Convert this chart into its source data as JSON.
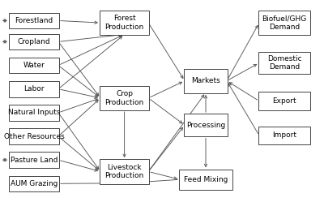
{
  "background_color": "#ffffff",
  "boxes": {
    "Forestland": [
      0.03,
      0.87,
      0.15,
      0.068
    ],
    "Cropland": [
      0.03,
      0.772,
      0.15,
      0.068
    ],
    "Water": [
      0.03,
      0.662,
      0.15,
      0.068
    ],
    "Labor": [
      0.03,
      0.552,
      0.15,
      0.068
    ],
    "Natural Inputs": [
      0.03,
      0.442,
      0.15,
      0.068
    ],
    "Other Resources": [
      0.03,
      0.332,
      0.15,
      0.068
    ],
    "Pasture Land": [
      0.03,
      0.222,
      0.15,
      0.068
    ],
    "AUM Grazing": [
      0.03,
      0.112,
      0.15,
      0.068
    ],
    "Forest\nProduction": [
      0.31,
      0.84,
      0.148,
      0.108
    ],
    "Crop\nProduction": [
      0.31,
      0.49,
      0.148,
      0.108
    ],
    "Livestock\nProduction": [
      0.31,
      0.148,
      0.148,
      0.108
    ],
    "Markets": [
      0.57,
      0.57,
      0.13,
      0.108
    ],
    "Processing": [
      0.57,
      0.368,
      0.13,
      0.1
    ],
    "Feed Mixing": [
      0.555,
      0.12,
      0.16,
      0.09
    ],
    "Biofuel/GHG\nDemand": [
      0.8,
      0.84,
      0.155,
      0.108
    ],
    "Domestic\nDemand": [
      0.8,
      0.66,
      0.155,
      0.095
    ],
    "Export": [
      0.8,
      0.49,
      0.155,
      0.08
    ],
    "Import": [
      0.8,
      0.33,
      0.155,
      0.08
    ]
  },
  "fontsize": 6.5,
  "box_edge_color": "#444444",
  "arrow_color": "#555555",
  "double_arrow_names": [
    "Forestland",
    "Cropland",
    "Pasture Land"
  ]
}
